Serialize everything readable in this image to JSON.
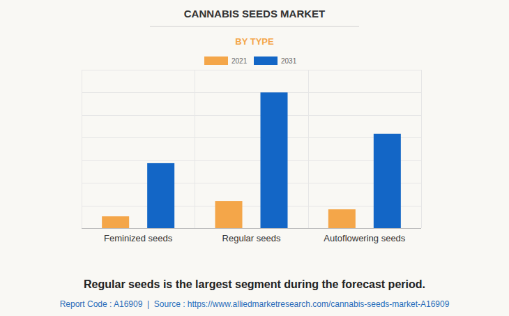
{
  "chart_data": {
    "type": "bar",
    "title": "CANNABIS SEEDS MARKET",
    "subtitle": "BY TYPE",
    "categories": [
      "Feminized seeds",
      "Regular seeds",
      "Autoflowering seeds"
    ],
    "series": [
      {
        "name": "2021",
        "color": "#f4a649",
        "values": [
          0.52,
          1.2,
          0.83
        ]
      },
      {
        "name": "2031",
        "color": "#1366c6",
        "values": [
          2.87,
          6.0,
          4.17
        ]
      }
    ],
    "ylim": [
      0,
      7
    ],
    "yticks": [
      0,
      1,
      2,
      3,
      4,
      5,
      6,
      7
    ],
    "grid": true,
    "tick_labels": "x",
    "legend": "top",
    "caption": "Regular seeds is the largest segment during the forecast period.",
    "source": "Report Code : A16909  |  Source : https://www.alliedmarketresearch.com/cannabis-seeds-market-A16909"
  }
}
